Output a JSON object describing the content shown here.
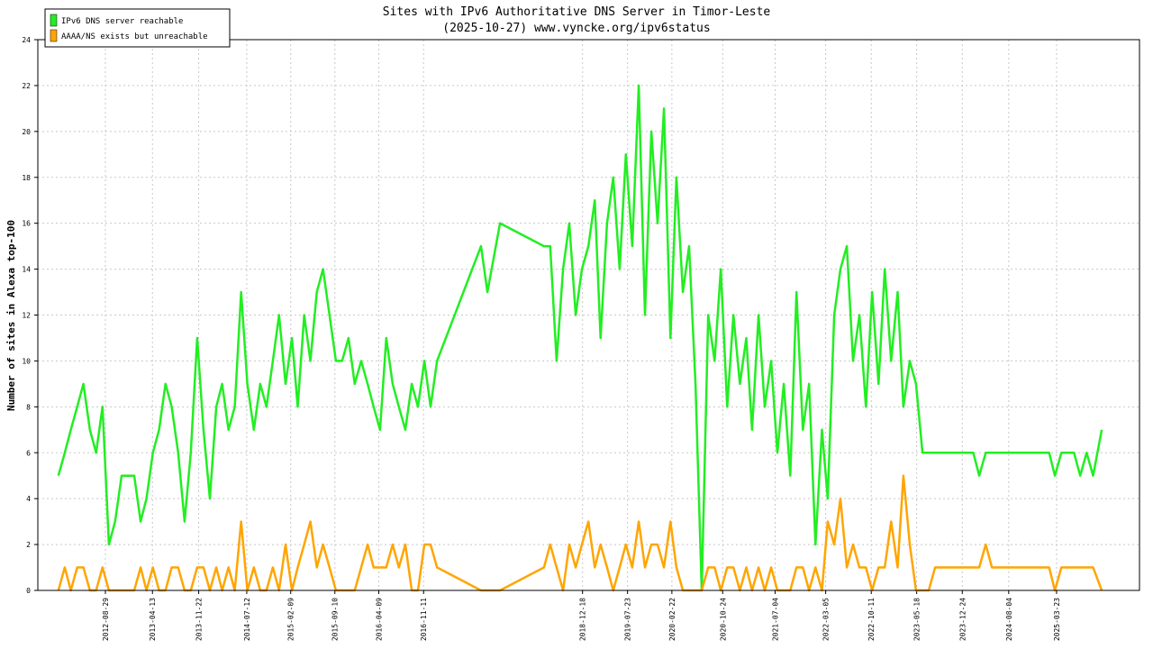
{
  "chart_data": {
    "type": "line",
    "title": "Sites with IPv6 Authoritative DNS Server in Timor-Leste",
    "subtitle": "(2025-10-27) www.vyncke.org/ipv6status",
    "y_label": "Number of sites in Alexa top-100",
    "legend": "upper left",
    "grid": true,
    "xlim": [
      "2011-10-08",
      "2026-04-27"
    ],
    "xticks": [
      "2012-08-29",
      "2013-04-13",
      "2013-11-22",
      "2014-07-12",
      "2015-02-09",
      "2015-09-10",
      "2016-04-09",
      "2016-11-11",
      "2018-12-18",
      "2019-07-23",
      "2020-02-22",
      "2020-10-24",
      "2021-07-04",
      "2022-03-05",
      "2022-10-11",
      "2023-05-18",
      "2023-12-24",
      "2024-08-04",
      "2025-03-23"
    ],
    "ylim": [
      0,
      24
    ],
    "yticks": [
      0,
      2,
      4,
      6,
      8,
      10,
      12,
      14,
      16,
      18,
      20,
      22,
      24
    ],
    "x": [
      "2012-01-15",
      "2012-02-15",
      "2012-03-15",
      "2012-04-15",
      "2012-05-15",
      "2012-06-15",
      "2012-07-15",
      "2012-08-15",
      "2012-09-15",
      "2012-10-15",
      "2012-11-15",
      "2012-12-15",
      "2013-01-15",
      "2013-02-15",
      "2013-03-15",
      "2013-04-15",
      "2013-05-15",
      "2013-06-15",
      "2013-07-15",
      "2013-08-15",
      "2013-09-15",
      "2013-10-15",
      "2013-11-15",
      "2013-12-15",
      "2014-01-15",
      "2014-02-15",
      "2014-03-15",
      "2014-04-15",
      "2014-05-15",
      "2014-06-15",
      "2014-07-15",
      "2014-08-15",
      "2014-09-15",
      "2014-10-15",
      "2014-11-15",
      "2014-12-15",
      "2015-01-15",
      "2015-02-15",
      "2015-03-15",
      "2015-04-15",
      "2015-05-15",
      "2015-06-15",
      "2015-07-15",
      "2015-08-15",
      "2015-09-15",
      "2015-10-15",
      "2015-11-15",
      "2015-12-15",
      "2016-01-15",
      "2016-02-15",
      "2016-03-15",
      "2016-04-15",
      "2016-05-15",
      "2016-06-15",
      "2016-07-15",
      "2016-08-15",
      "2016-09-15",
      "2016-10-15",
      "2016-11-15",
      "2016-12-15",
      "2017-01-15",
      "2017-08-15",
      "2017-09-15",
      "2017-11-15",
      "2018-06-15",
      "2018-07-15",
      "2018-08-15",
      "2018-09-15",
      "2018-10-15",
      "2018-11-15",
      "2018-12-15",
      "2019-01-15",
      "2019-02-15",
      "2019-03-15",
      "2019-04-15",
      "2019-05-15",
      "2019-06-15",
      "2019-07-15",
      "2019-08-15",
      "2019-09-15",
      "2019-10-15",
      "2019-11-15",
      "2019-12-15",
      "2020-01-15",
      "2020-02-15",
      "2020-03-15",
      "2020-04-15",
      "2020-05-15",
      "2020-06-15",
      "2020-07-15",
      "2020-08-15",
      "2020-09-15",
      "2020-10-15",
      "2020-11-15",
      "2020-12-15",
      "2021-01-15",
      "2021-02-15",
      "2021-03-15",
      "2021-04-15",
      "2021-05-15",
      "2021-06-15",
      "2021-07-15",
      "2021-08-15",
      "2021-09-15",
      "2021-10-15",
      "2021-11-15",
      "2021-12-15",
      "2022-01-15",
      "2022-02-15",
      "2022-03-15",
      "2022-04-15",
      "2022-05-15",
      "2022-06-15",
      "2022-07-15",
      "2022-08-15",
      "2022-09-15",
      "2022-10-15",
      "2022-11-15",
      "2022-12-15",
      "2023-01-15",
      "2023-02-15",
      "2023-03-15",
      "2023-04-15",
      "2023-05-15",
      "2023-06-15",
      "2023-07-15",
      "2023-08-15",
      "2023-09-15",
      "2023-10-15",
      "2023-11-15",
      "2023-12-15",
      "2024-01-15",
      "2024-02-15",
      "2024-03-15",
      "2024-04-15",
      "2024-05-15",
      "2024-06-15",
      "2024-07-15",
      "2024-08-15",
      "2024-09-15",
      "2024-10-15",
      "2024-11-15",
      "2024-12-15",
      "2025-01-15",
      "2025-02-15",
      "2025-03-15",
      "2025-04-15",
      "2025-05-15",
      "2025-06-15",
      "2025-07-15",
      "2025-08-15",
      "2025-09-15",
      "2025-10-27"
    ],
    "series": [
      {
        "name": "IPv6 DNS server reachable",
        "color": "#22ee22",
        "values": [
          5,
          6,
          7,
          8,
          9,
          7,
          6,
          8,
          2,
          3,
          5,
          5,
          5,
          3,
          4,
          6,
          7,
          9,
          8,
          6,
          3,
          6,
          11,
          7,
          4,
          8,
          9,
          7,
          8,
          13,
          9,
          7,
          9,
          8,
          10,
          12,
          9,
          11,
          8,
          12,
          10,
          13,
          14,
          12,
          10,
          10,
          11,
          9,
          10,
          9,
          8,
          7,
          11,
          9,
          8,
          7,
          9,
          8,
          10,
          8,
          10,
          15,
          13,
          16,
          15,
          15,
          10,
          14,
          16,
          12,
          14,
          15,
          17,
          11,
          16,
          18,
          14,
          19,
          15,
          22,
          12,
          20,
          16,
          21,
          11,
          18,
          13,
          15,
          9,
          0,
          12,
          10,
          14,
          8,
          12,
          9,
          11,
          7,
          12,
          8,
          10,
          6,
          9,
          5,
          13,
          7,
          9,
          2,
          7,
          4,
          12,
          14,
          15,
          10,
          12,
          8,
          13,
          9,
          14,
          10,
          13,
          8,
          10,
          9,
          6,
          6,
          6,
          6,
          6,
          6,
          6,
          6,
          6,
          5,
          6,
          6,
          6,
          6,
          6,
          6,
          6,
          6,
          6,
          6,
          6,
          5,
          6,
          6,
          6,
          5,
          6,
          5,
          7
        ]
      },
      {
        "name": "AAAA/NS exists but unreachable",
        "color": "#ffa500",
        "values": [
          0,
          1,
          0,
          1,
          1,
          0,
          0,
          1,
          0,
          0,
          0,
          0,
          0,
          1,
          0,
          1,
          0,
          0,
          1,
          1,
          0,
          0,
          1,
          1,
          0,
          1,
          0,
          1,
          0,
          3,
          0,
          1,
          0,
          0,
          1,
          0,
          2,
          0,
          1,
          2,
          3,
          1,
          2,
          1,
          0,
          0,
          0,
          0,
          1,
          2,
          1,
          1,
          1,
          2,
          1,
          2,
          0,
          0,
          2,
          2,
          1,
          0,
          0,
          0,
          1,
          2,
          1,
          0,
          2,
          1,
          2,
          3,
          1,
          2,
          1,
          0,
          1,
          2,
          1,
          3,
          1,
          2,
          2,
          1,
          3,
          1,
          0,
          0,
          0,
          0,
          1,
          1,
          0,
          1,
          1,
          0,
          1,
          0,
          1,
          0,
          1,
          0,
          0,
          0,
          1,
          1,
          0,
          1,
          0,
          3,
          2,
          4,
          1,
          2,
          1,
          1,
          0,
          1,
          1,
          3,
          1,
          5,
          2,
          0,
          0,
          0,
          1,
          1,
          1,
          1,
          1,
          1,
          1,
          1,
          2,
          1,
          1,
          1,
          1,
          1,
          1,
          1,
          1,
          1,
          1,
          0,
          1,
          1,
          1,
          1,
          1,
          1,
          0
        ]
      }
    ]
  }
}
